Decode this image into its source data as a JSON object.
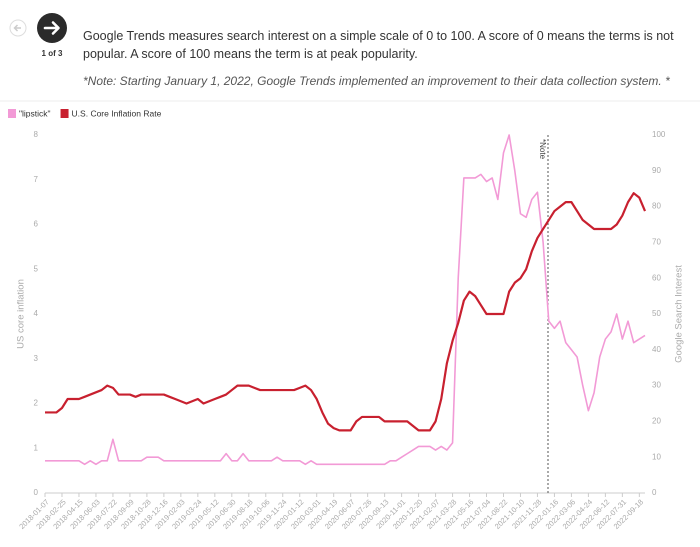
{
  "header": {
    "pager": "1 of 3",
    "description": "Google Trends measures search interest on a simple scale of 0 to 100. A score of 0 means the terms is not popular. A score of 100 means the term is at peak popularity.",
    "note": "*Note: Starting January 1, 2022, Google Trends implemented an improvement to their data collection system. *"
  },
  "chart_data": {
    "type": "line",
    "ylabel": "US core inflation",
    "y2label": "Google Search Interest",
    "annotation": "*Note",
    "categories": [
      "2018-01-07",
      null,
      null,
      "2018-02-25",
      null,
      null,
      "2018-04-15",
      null,
      null,
      "2018-06-03",
      null,
      null,
      "2018-07-22",
      null,
      null,
      "2018-09-09",
      null,
      null,
      "2018-10-28",
      null,
      null,
      "2018-12-16",
      null,
      null,
      "2019-02-03",
      null,
      null,
      "2019-03-24",
      null,
      null,
      "2019-05-12",
      null,
      null,
      "2019-06-30",
      null,
      null,
      "2019-08-18",
      null,
      null,
      "2019-10-06",
      null,
      null,
      "2019-11-24",
      null,
      null,
      "2020-01-12",
      null,
      null,
      "2020-03-01",
      null,
      null,
      "2020-04-19",
      null,
      null,
      "2020-06-07",
      null,
      null,
      "2020-07-26",
      null,
      null,
      "2020-09-13",
      null,
      null,
      "2020-11-01",
      null,
      null,
      "2020-12-20",
      null,
      null,
      "2021-02-07",
      null,
      null,
      "2021-03-28",
      null,
      null,
      "2021-05-16",
      null,
      null,
      "2021-07-04",
      null,
      null,
      "2021-08-22",
      null,
      null,
      "2021-10-10",
      null,
      null,
      "2021-11-28",
      null,
      null,
      "2022-01-16",
      null,
      null,
      "2022-03-06",
      null,
      null,
      "2022-04-24",
      null,
      null,
      "2022-06-12",
      null,
      null,
      "2022-07-31",
      null,
      null,
      "2022-09-18",
      null
    ],
    "series": [
      {
        "name": "\"lipstick\"",
        "color": "#f29ad6",
        "axis": "y2",
        "values": [
          9,
          9,
          9,
          9,
          9,
          9,
          9,
          8,
          9,
          8,
          9,
          9,
          15,
          9,
          9,
          9,
          9,
          9,
          10,
          10,
          10,
          9,
          9,
          9,
          9,
          9,
          9,
          9,
          9,
          9,
          9,
          9,
          11,
          9,
          9,
          11,
          9,
          9,
          9,
          9,
          9,
          10,
          9,
          9,
          9,
          9,
          8,
          9,
          8,
          8,
          8,
          8,
          8,
          8,
          8,
          8,
          8,
          8,
          8,
          8,
          8,
          9,
          9,
          10,
          11,
          12,
          13,
          13,
          13,
          12,
          13,
          12,
          14,
          60,
          88,
          88,
          88,
          89,
          87,
          88,
          82,
          95,
          100,
          90,
          78,
          77,
          82,
          84,
          70,
          48,
          46,
          48,
          42,
          40,
          38,
          30,
          23,
          28,
          38,
          43,
          45,
          50,
          43,
          48,
          42,
          43,
          44
        ]
      },
      {
        "name": "U.S. Core Inflation Rate",
        "color": "#c8202f",
        "values": [
          1.8,
          1.8,
          1.8,
          1.9,
          2.1,
          2.1,
          2.1,
          2.15,
          2.2,
          2.25,
          2.3,
          2.4,
          2.35,
          2.2,
          2.2,
          2.2,
          2.15,
          2.2,
          2.2,
          2.2,
          2.2,
          2.2,
          2.15,
          2.1,
          2.05,
          2.0,
          2.05,
          2.1,
          2.0,
          2.05,
          2.1,
          2.15,
          2.2,
          2.3,
          2.4,
          2.4,
          2.4,
          2.35,
          2.3,
          2.3,
          2.3,
          2.3,
          2.3,
          2.3,
          2.3,
          2.35,
          2.4,
          2.3,
          2.1,
          1.8,
          1.55,
          1.45,
          1.4,
          1.4,
          1.4,
          1.6,
          1.7,
          1.7,
          1.7,
          1.7,
          1.6,
          1.6,
          1.6,
          1.6,
          1.6,
          1.5,
          1.4,
          1.4,
          1.4,
          1.6,
          2.1,
          2.9,
          3.4,
          3.8,
          4.3,
          4.5,
          4.4,
          4.2,
          4.0,
          4.0,
          4.0,
          4.0,
          4.5,
          4.7,
          4.8,
          5.0,
          5.4,
          5.7,
          5.9,
          6.1,
          6.3,
          6.4,
          6.5,
          6.5,
          6.3,
          6.1,
          6.0,
          5.9,
          5.9,
          5.9,
          5.9,
          6.0,
          6.2,
          6.5,
          6.7,
          6.6,
          6.3
        ]
      }
    ],
    "ylim": [
      0,
      8
    ],
    "yticks": [
      0,
      1,
      2,
      3,
      4,
      5,
      6,
      7,
      8
    ],
    "y2lim": [
      0,
      100
    ],
    "y2ticks": [
      0,
      10,
      20,
      30,
      40,
      50,
      60,
      70,
      80,
      90,
      100
    ],
    "grid": false
  }
}
